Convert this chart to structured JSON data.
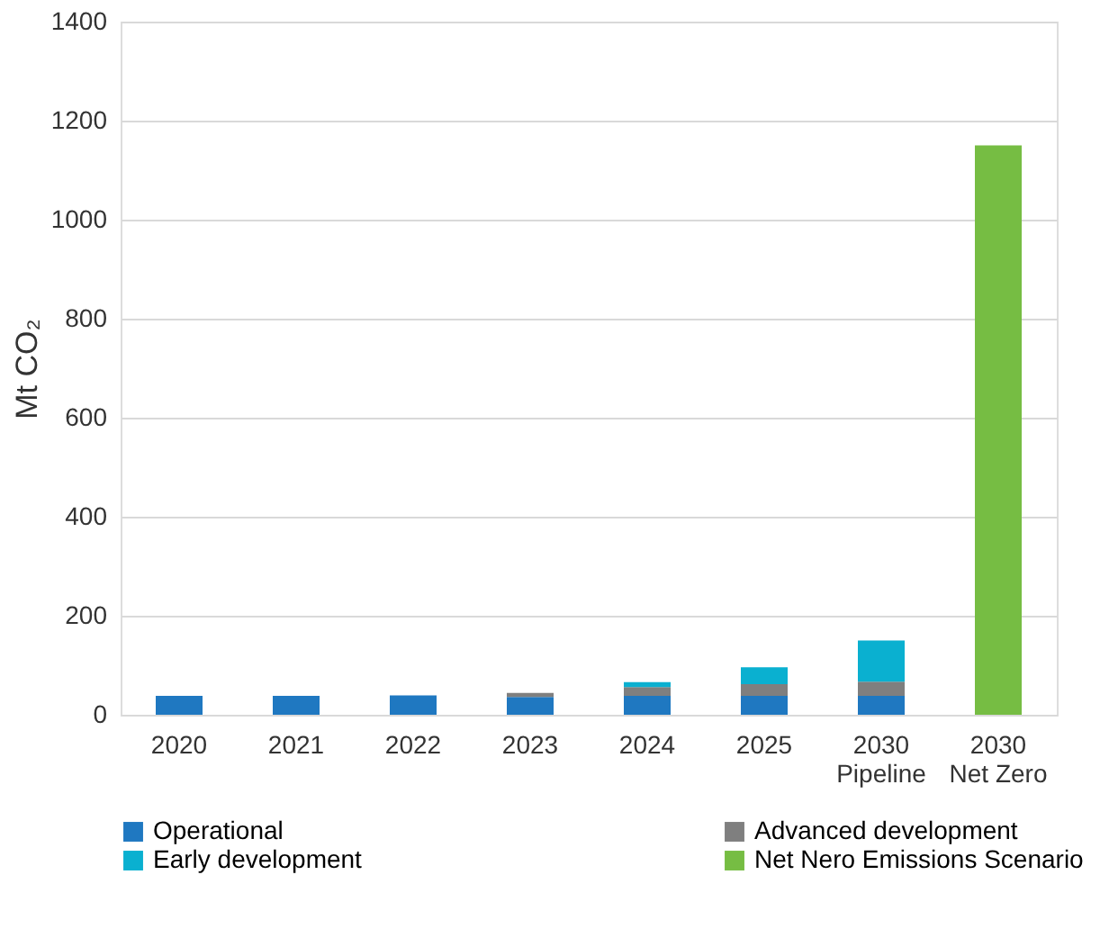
{
  "chart_data": {
    "type": "bar",
    "stacked": true,
    "ylabel": "Mt CO₂",
    "categories": [
      "2020",
      "2021",
      "2022",
      "2023",
      "2024",
      "2025",
      "2030\nPipeline",
      "2030\nNet Zero"
    ],
    "series": [
      {
        "name": "Operational",
        "color": "#1f78c1",
        "values": [
          38,
          38,
          39,
          36,
          38,
          38,
          38,
          null
        ]
      },
      {
        "name": "Advanced development",
        "color": "#7f7f7f",
        "values": [
          null,
          null,
          null,
          8,
          18,
          24,
          29,
          null
        ]
      },
      {
        "name": "Early development",
        "color": "#0ab0d0",
        "values": [
          null,
          null,
          null,
          null,
          10,
          34,
          83,
          null
        ]
      },
      {
        "name": "Net Nero Emissions Scenario",
        "color": "#76bd43",
        "values": [
          null,
          null,
          null,
          null,
          null,
          null,
          null,
          1150
        ]
      }
    ],
    "ylim": [
      0,
      1400
    ],
    "yticks": [
      0,
      200,
      400,
      600,
      800,
      1000,
      1200,
      1400
    ],
    "grid": "y",
    "legend": "bottom"
  }
}
